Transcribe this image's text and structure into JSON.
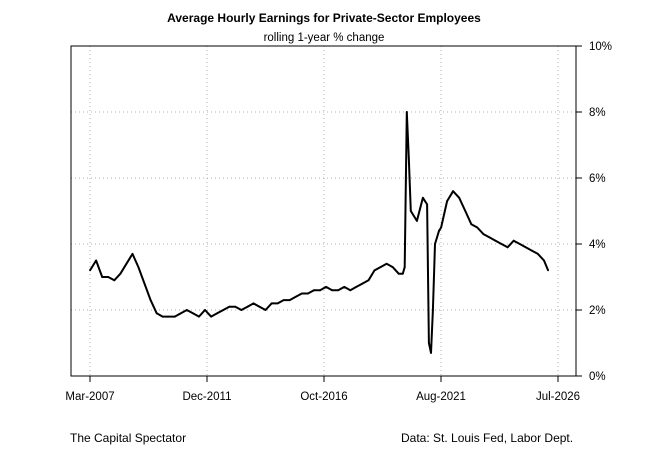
{
  "chart_data": {
    "type": "line",
    "title": "Average Hourly Earnings for Private-Sector Employees",
    "subtitle": "rolling 1-year % change",
    "xlabel": "",
    "ylabel": "",
    "x_tick_labels": [
      "Mar-2007",
      "Dec-2011",
      "Oct-2016",
      "Aug-2021",
      "Jul-2026"
    ],
    "y_tick_labels": [
      "0%",
      "2%",
      "4%",
      "6%",
      "8%",
      "10%"
    ],
    "ylim": [
      0,
      10
    ],
    "y_axis_side": "right",
    "grid": true,
    "legend": "none",
    "line_color": "#000000",
    "series": [
      {
        "x": [
          "2007-03",
          "2007-06",
          "2007-09",
          "2007-12",
          "2008-03",
          "2008-06",
          "2008-09",
          "2008-12",
          "2009-03",
          "2009-06",
          "2009-09",
          "2009-12",
          "2010-03",
          "2010-06",
          "2010-09",
          "2010-12",
          "2011-03",
          "2011-06",
          "2011-09",
          "2011-12",
          "2012-03",
          "2012-06",
          "2012-09",
          "2012-12",
          "2013-03",
          "2013-06",
          "2013-09",
          "2013-12",
          "2014-03",
          "2014-06",
          "2014-09",
          "2014-12",
          "2015-03",
          "2015-06",
          "2015-09",
          "2015-12",
          "2016-03",
          "2016-06",
          "2016-09",
          "2016-12",
          "2017-03",
          "2017-06",
          "2017-09",
          "2017-12",
          "2018-03",
          "2018-06",
          "2018-09",
          "2018-12",
          "2019-03",
          "2019-06",
          "2019-09",
          "2019-12",
          "2020-02",
          "2020-03",
          "2020-04",
          "2020-05",
          "2020-06",
          "2020-09",
          "2020-12",
          "2021-02",
          "2021-03",
          "2021-04",
          "2021-05",
          "2021-06",
          "2021-08",
          "2021-09",
          "2021-12",
          "2022-03",
          "2022-06",
          "2022-09",
          "2022-12",
          "2023-03",
          "2023-06",
          "2023-09",
          "2023-12",
          "2024-03",
          "2024-06",
          "2024-09",
          "2024-12",
          "2025-03",
          "2025-06",
          "2025-09",
          "2025-12",
          "2026-02"
        ],
        "values": [
          3.2,
          3.5,
          3.0,
          3.0,
          2.9,
          3.1,
          3.4,
          3.7,
          3.3,
          2.8,
          2.3,
          1.9,
          1.8,
          1.8,
          1.8,
          1.9,
          2.0,
          1.9,
          1.8,
          2.0,
          1.8,
          1.9,
          2.0,
          2.1,
          2.1,
          2.0,
          2.1,
          2.2,
          2.1,
          2.0,
          2.2,
          2.2,
          2.3,
          2.3,
          2.4,
          2.5,
          2.5,
          2.6,
          2.6,
          2.7,
          2.6,
          2.6,
          2.7,
          2.6,
          2.7,
          2.8,
          2.9,
          3.2,
          3.3,
          3.4,
          3.3,
          3.1,
          3.1,
          3.3,
          8.0,
          6.6,
          5.0,
          4.7,
          5.4,
          5.2,
          1.0,
          0.7,
          2.0,
          4.0,
          4.4,
          4.5,
          5.3,
          5.6,
          5.4,
          5.0,
          4.6,
          4.5,
          4.3,
          4.2,
          4.1,
          4.0,
          3.9,
          4.1,
          4.0,
          3.9,
          3.8,
          3.7,
          3.5,
          3.2
        ]
      }
    ]
  },
  "footer": {
    "left": "The Capital Spectator",
    "right": "Data: St. Louis Fed, Labor Dept."
  }
}
